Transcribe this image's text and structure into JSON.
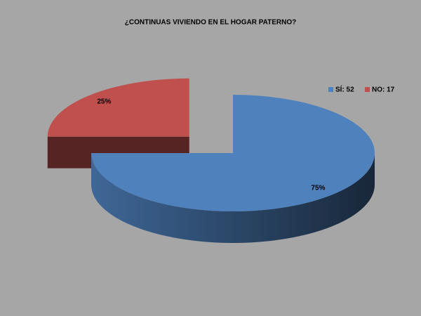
{
  "chart_data": {
    "type": "pie",
    "title": "¿CONTINUAS VIVIENDO EN EL HOGAR PATERNO?",
    "categories": [
      "SÍ: 52",
      "NO: 17"
    ],
    "values": [
      75,
      25
    ],
    "value_labels": [
      "75%",
      "25%"
    ],
    "colors": [
      "#4f81bd",
      "#c0504d"
    ]
  }
}
